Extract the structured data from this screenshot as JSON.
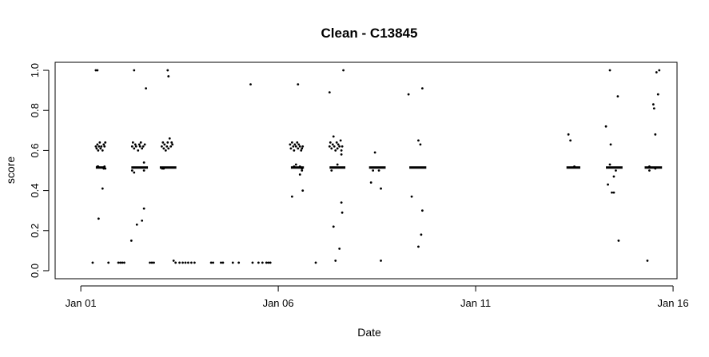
{
  "chart_data": {
    "type": "scatter",
    "title": "Clean - C13845",
    "xlabel": "Date",
    "ylabel": "score",
    "x_ticks": [
      {
        "label": "Jan 01",
        "value": 1
      },
      {
        "label": "Jan 06",
        "value": 6
      },
      {
        "label": "Jan 11",
        "value": 11
      },
      {
        "label": "Jan 16",
        "value": 16
      }
    ],
    "y_ticks": [
      {
        "label": "0.0",
        "value": 0.0
      },
      {
        "label": "0.2",
        "value": 0.2
      },
      {
        "label": "0.4",
        "value": 0.4
      },
      {
        "label": "0.6",
        "value": 0.6
      },
      {
        "label": "0.8",
        "value": 0.8
      },
      {
        "label": "1.0",
        "value": 1.0
      }
    ],
    "xlim": [
      0.35,
      16.1
    ],
    "ylim": [
      -0.04,
      1.04
    ],
    "grid": false,
    "legend": "none",
    "point_color": "#000000",
    "points": [
      [
        1.3,
        0.04
      ],
      [
        1.38,
        1.0
      ],
      [
        1.42,
        1.0
      ],
      [
        1.45,
        0.26
      ],
      [
        1.55,
        0.41
      ],
      [
        1.7,
        0.04
      ],
      [
        1.38,
        0.62
      ],
      [
        1.4,
        0.61
      ],
      [
        1.42,
        0.63
      ],
      [
        1.44,
        0.6
      ],
      [
        1.46,
        0.62
      ],
      [
        1.48,
        0.64
      ],
      [
        1.5,
        0.61
      ],
      [
        1.52,
        0.62
      ],
      [
        1.55,
        0.6
      ],
      [
        1.58,
        0.63
      ],
      [
        1.6,
        0.62
      ],
      [
        1.62,
        0.64
      ],
      [
        1.42,
        0.52
      ],
      [
        1.44,
        0.52
      ],
      [
        1.58,
        0.51
      ],
      [
        1.6,
        0.52
      ],
      [
        1.62,
        0.51
      ],
      [
        1.95,
        0.04
      ],
      [
        2.0,
        0.04
      ],
      [
        2.05,
        0.04
      ],
      [
        2.1,
        0.04
      ],
      [
        2.28,
        0.15
      ],
      [
        2.35,
        1.0
      ],
      [
        2.42,
        0.23
      ],
      [
        2.55,
        0.25
      ],
      [
        2.6,
        0.31
      ],
      [
        2.65,
        0.91
      ],
      [
        2.6,
        0.54
      ],
      [
        2.3,
        0.62
      ],
      [
        2.32,
        0.64
      ],
      [
        2.35,
        0.61
      ],
      [
        2.38,
        0.63
      ],
      [
        2.4,
        0.62
      ],
      [
        2.45,
        0.6
      ],
      [
        2.48,
        0.63
      ],
      [
        2.5,
        0.62
      ],
      [
        2.52,
        0.64
      ],
      [
        2.55,
        0.61
      ],
      [
        2.58,
        0.62
      ],
      [
        2.62,
        0.63
      ],
      [
        2.3,
        0.5
      ],
      [
        2.35,
        0.49
      ],
      [
        2.6,
        0.5
      ],
      [
        2.75,
        0.04
      ],
      [
        2.8,
        0.04
      ],
      [
        2.85,
        0.04
      ],
      [
        3.2,
        1.0
      ],
      [
        3.22,
        0.97
      ],
      [
        3.35,
        0.05
      ],
      [
        3.4,
        0.04
      ],
      [
        3.5,
        0.04
      ],
      [
        3.58,
        0.04
      ],
      [
        3.65,
        0.04
      ],
      [
        3.72,
        0.04
      ],
      [
        3.8,
        0.04
      ],
      [
        3.88,
        0.04
      ],
      [
        3.05,
        0.62
      ],
      [
        3.08,
        0.64
      ],
      [
        3.1,
        0.61
      ],
      [
        3.12,
        0.63
      ],
      [
        3.15,
        0.6
      ],
      [
        3.18,
        0.62
      ],
      [
        3.2,
        0.64
      ],
      [
        3.22,
        0.61
      ],
      [
        3.25,
        0.66
      ],
      [
        3.28,
        0.62
      ],
      [
        3.3,
        0.64
      ],
      [
        3.32,
        0.63
      ],
      [
        3.06,
        0.51
      ],
      [
        3.1,
        0.51
      ],
      [
        4.3,
        0.04
      ],
      [
        4.35,
        0.04
      ],
      [
        4.55,
        0.04
      ],
      [
        4.6,
        0.04
      ],
      [
        4.85,
        0.04
      ],
      [
        5.0,
        0.04
      ],
      [
        5.35,
        0.04
      ],
      [
        5.5,
        0.04
      ],
      [
        5.6,
        0.04
      ],
      [
        5.7,
        0.04
      ],
      [
        5.75,
        0.04
      ],
      [
        5.8,
        0.04
      ],
      [
        5.3,
        0.93
      ],
      [
        6.35,
        0.37
      ],
      [
        6.5,
        0.93
      ],
      [
        6.62,
        0.4
      ],
      [
        6.55,
        0.48
      ],
      [
        6.6,
        0.5
      ],
      [
        6.3,
        0.63
      ],
      [
        6.32,
        0.61
      ],
      [
        6.35,
        0.64
      ],
      [
        6.38,
        0.62
      ],
      [
        6.4,
        0.6
      ],
      [
        6.42,
        0.63
      ],
      [
        6.45,
        0.62
      ],
      [
        6.48,
        0.64
      ],
      [
        6.5,
        0.61
      ],
      [
        6.52,
        0.63
      ],
      [
        6.55,
        0.62
      ],
      [
        6.58,
        0.6
      ],
      [
        6.6,
        0.61
      ],
      [
        6.62,
        0.62
      ],
      [
        6.4,
        0.52
      ],
      [
        6.45,
        0.53
      ],
      [
        6.55,
        0.52
      ],
      [
        6.6,
        0.51
      ],
      [
        6.95,
        0.04
      ],
      [
        7.3,
        0.89
      ],
      [
        7.4,
        0.22
      ],
      [
        7.45,
        0.05
      ],
      [
        7.55,
        0.11
      ],
      [
        7.6,
        0.34
      ],
      [
        7.62,
        0.29
      ],
      [
        7.65,
        1.0
      ],
      [
        7.6,
        0.58
      ],
      [
        7.5,
        0.53
      ],
      [
        7.35,
        0.5
      ],
      [
        7.3,
        0.62
      ],
      [
        7.32,
        0.64
      ],
      [
        7.35,
        0.61
      ],
      [
        7.38,
        0.63
      ],
      [
        7.4,
        0.67
      ],
      [
        7.42,
        0.62
      ],
      [
        7.45,
        0.6
      ],
      [
        7.48,
        0.64
      ],
      [
        7.5,
        0.61
      ],
      [
        7.52,
        0.63
      ],
      [
        7.55,
        0.62
      ],
      [
        7.58,
        0.65
      ],
      [
        7.6,
        0.6
      ],
      [
        7.62,
        0.62
      ],
      [
        8.35,
        0.44
      ],
      [
        8.45,
        0.59
      ],
      [
        8.6,
        0.41
      ],
      [
        8.6,
        0.05
      ],
      [
        8.55,
        0.5
      ],
      [
        8.4,
        0.5
      ],
      [
        9.3,
        0.88
      ],
      [
        9.38,
        0.37
      ],
      [
        9.55,
        0.12
      ],
      [
        9.6,
        0.63
      ],
      [
        9.65,
        0.91
      ],
      [
        9.65,
        0.3
      ],
      [
        9.62,
        0.18
      ],
      [
        9.55,
        0.65
      ],
      [
        13.35,
        0.68
      ],
      [
        13.4,
        0.65
      ],
      [
        13.5,
        0.52
      ],
      [
        14.3,
        0.72
      ],
      [
        14.35,
        0.43
      ],
      [
        14.4,
        1.0
      ],
      [
        14.42,
        0.63
      ],
      [
        14.45,
        0.39
      ],
      [
        14.5,
        0.39
      ],
      [
        14.5,
        0.47
      ],
      [
        14.6,
        0.87
      ],
      [
        14.62,
        0.15
      ],
      [
        14.55,
        0.5
      ],
      [
        14.4,
        0.53
      ],
      [
        15.35,
        0.05
      ],
      [
        15.4,
        0.52
      ],
      [
        15.5,
        0.83
      ],
      [
        15.52,
        0.81
      ],
      [
        15.55,
        0.68
      ],
      [
        15.58,
        0.99
      ],
      [
        15.62,
        0.88
      ],
      [
        15.65,
        1.0
      ],
      [
        15.55,
        0.51
      ],
      [
        15.4,
        0.5
      ]
    ],
    "dense_runs": [
      {
        "x_start": 1.38,
        "x_end": 1.62,
        "y": 0.515
      },
      {
        "x_start": 2.28,
        "x_end": 2.7,
        "y": 0.515
      },
      {
        "x_start": 3.0,
        "x_end": 3.42,
        "y": 0.515
      },
      {
        "x_start": 6.32,
        "x_end": 6.65,
        "y": 0.515
      },
      {
        "x_start": 7.3,
        "x_end": 7.7,
        "y": 0.515
      },
      {
        "x_start": 8.3,
        "x_end": 8.72,
        "y": 0.515
      },
      {
        "x_start": 9.32,
        "x_end": 9.75,
        "y": 0.515
      },
      {
        "x_start": 13.3,
        "x_end": 13.65,
        "y": 0.515
      },
      {
        "x_start": 14.3,
        "x_end": 14.72,
        "y": 0.515
      },
      {
        "x_start": 15.28,
        "x_end": 15.72,
        "y": 0.515
      }
    ]
  }
}
